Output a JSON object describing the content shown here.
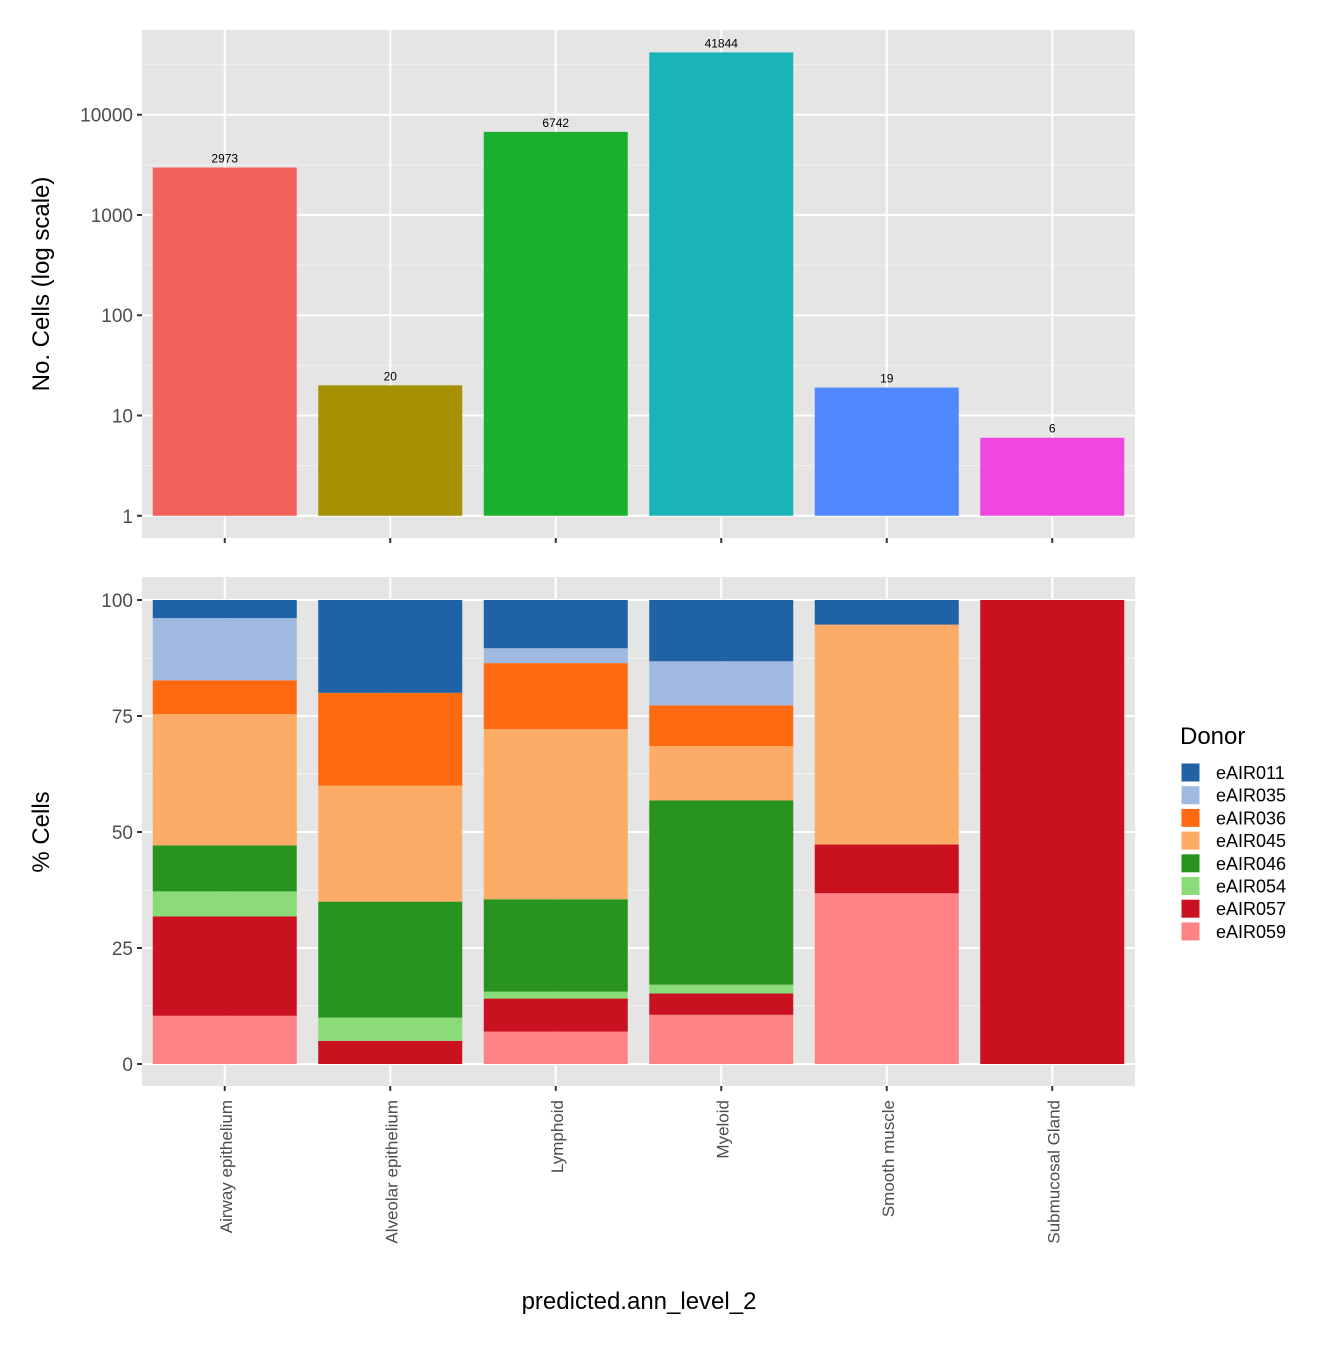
{
  "chart_data": [
    {
      "type": "bar",
      "ylabel": "No. Cells (log scale)",
      "yscale": "log10",
      "ylim": [
        0.6,
        70000
      ],
      "yticks": [
        1,
        10,
        100,
        1000,
        10000
      ],
      "ytick_labels": [
        "1",
        "10",
        "100",
        "1000",
        "10000"
      ],
      "categories": [
        "Airway epithelium",
        "Alveolar epithelium",
        "Lymphoid",
        "Myeloid",
        "Smooth muscle",
        "Submucosal Gland"
      ],
      "values": [
        2973,
        20,
        6742,
        41844,
        19,
        6
      ],
      "data_labels": [
        "2973",
        "20",
        "6742",
        "41844",
        "19",
        "6"
      ],
      "colors": [
        "#F3615B",
        "#A69102",
        "#19B02E",
        "#1AB3B8",
        "#5088FF",
        "#EF47DF"
      ],
      "grid": true
    },
    {
      "type": "bar",
      "stacked": true,
      "ylabel": "% Cells",
      "xlabel": "predicted.ann_level_2",
      "ylim": [
        -5,
        105
      ],
      "yticks": [
        0,
        25,
        50,
        75,
        100
      ],
      "ytick_labels": [
        "0",
        "25",
        "50",
        "75",
        "100"
      ],
      "categories": [
        "Airway epithelium",
        "Alveolar epithelium",
        "Lymphoid",
        "Myeloid",
        "Smooth muscle",
        "Submucosal Gland"
      ],
      "legend": {
        "title": "Donor",
        "position": "right"
      },
      "series": [
        {
          "name": "eAIR011",
          "color": "#1F62A5",
          "values": [
            3.9,
            20.0,
            10.4,
            13.2,
            5.3,
            0
          ]
        },
        {
          "name": "eAIR035",
          "color": "#A0B9E1",
          "values": [
            13.4,
            0,
            3.2,
            9.5,
            0,
            0
          ]
        },
        {
          "name": "eAIR036",
          "color": "#FF6A10",
          "values": [
            7.3,
            20.0,
            14.2,
            8.8,
            0,
            0
          ]
        },
        {
          "name": "eAIR045",
          "color": "#FDAC67",
          "values": [
            28.3,
            25.0,
            36.7,
            11.7,
            47.4,
            0
          ]
        },
        {
          "name": "eAIR046",
          "color": "#29931F",
          "values": [
            9.9,
            25.0,
            19.9,
            39.7,
            0,
            0
          ]
        },
        {
          "name": "eAIR054",
          "color": "#8ADC78",
          "values": [
            5.4,
            5.0,
            1.5,
            1.9,
            0,
            0
          ]
        },
        {
          "name": "eAIR057",
          "color": "#C9111F",
          "values": [
            21.4,
            5.0,
            7.1,
            4.6,
            10.5,
            100
          ]
        },
        {
          "name": "eAIR059",
          "color": "#FF8385",
          "values": [
            10.4,
            0,
            7.0,
            10.6,
            36.8,
            0
          ]
        }
      ],
      "grid": true
    }
  ]
}
